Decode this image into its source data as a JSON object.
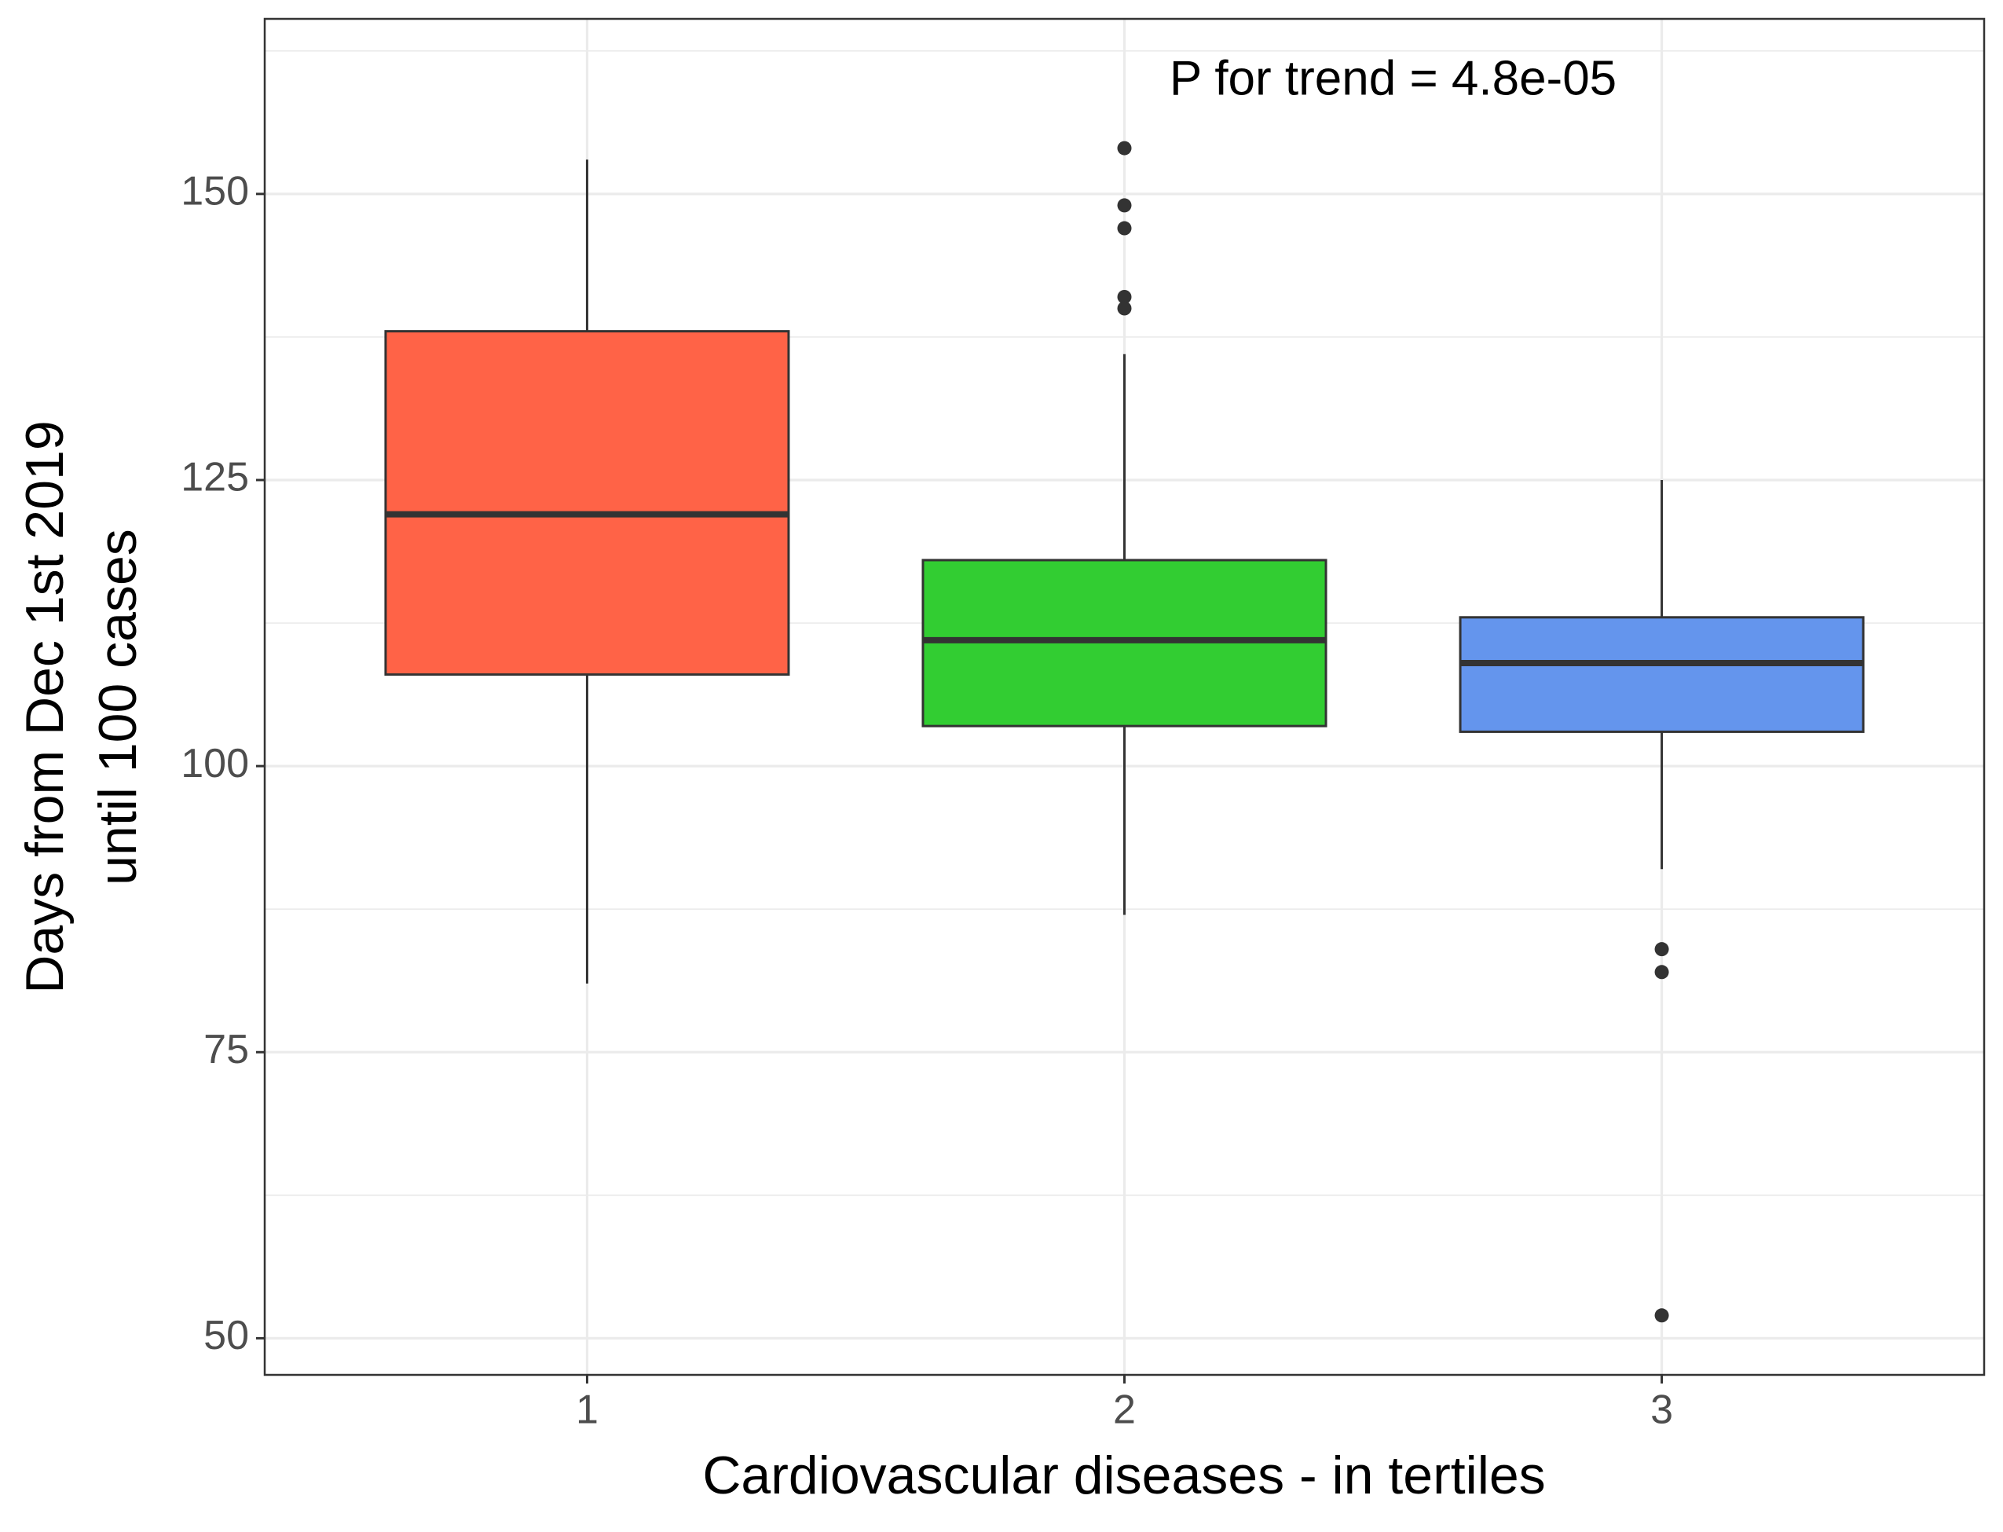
{
  "chart_data": {
    "type": "box",
    "xlabel": "Cardiovascular diseases - in tertiles",
    "ylabel": [
      "Days from Dec 1st 2019",
      "until 100 cases"
    ],
    "annotation": "P for trend = 4.8e-05",
    "categories": [
      "1",
      "2",
      "3"
    ],
    "boxes": [
      {
        "color": "#FF6347",
        "min": 81,
        "q1": 108,
        "median": 122,
        "q3": 138,
        "max": 153,
        "outliers": []
      },
      {
        "color": "#32CD32",
        "min": 87,
        "q1": 103.5,
        "median": 111,
        "q3": 118,
        "max": 136,
        "outliers": [
          154,
          149,
          147,
          141,
          140
        ]
      },
      {
        "color": "#6495ED",
        "min": 91,
        "q1": 103,
        "median": 109,
        "q3": 113,
        "max": 125,
        "outliers": [
          84,
          82,
          52
        ]
      }
    ],
    "ylim": [
      46.8,
      165.3
    ],
    "yticks": [
      50,
      75,
      100,
      125,
      150
    ],
    "minor_yticks": [
      62.5,
      87.5,
      112.5,
      137.5,
      162.5
    ],
    "grid": true
  }
}
